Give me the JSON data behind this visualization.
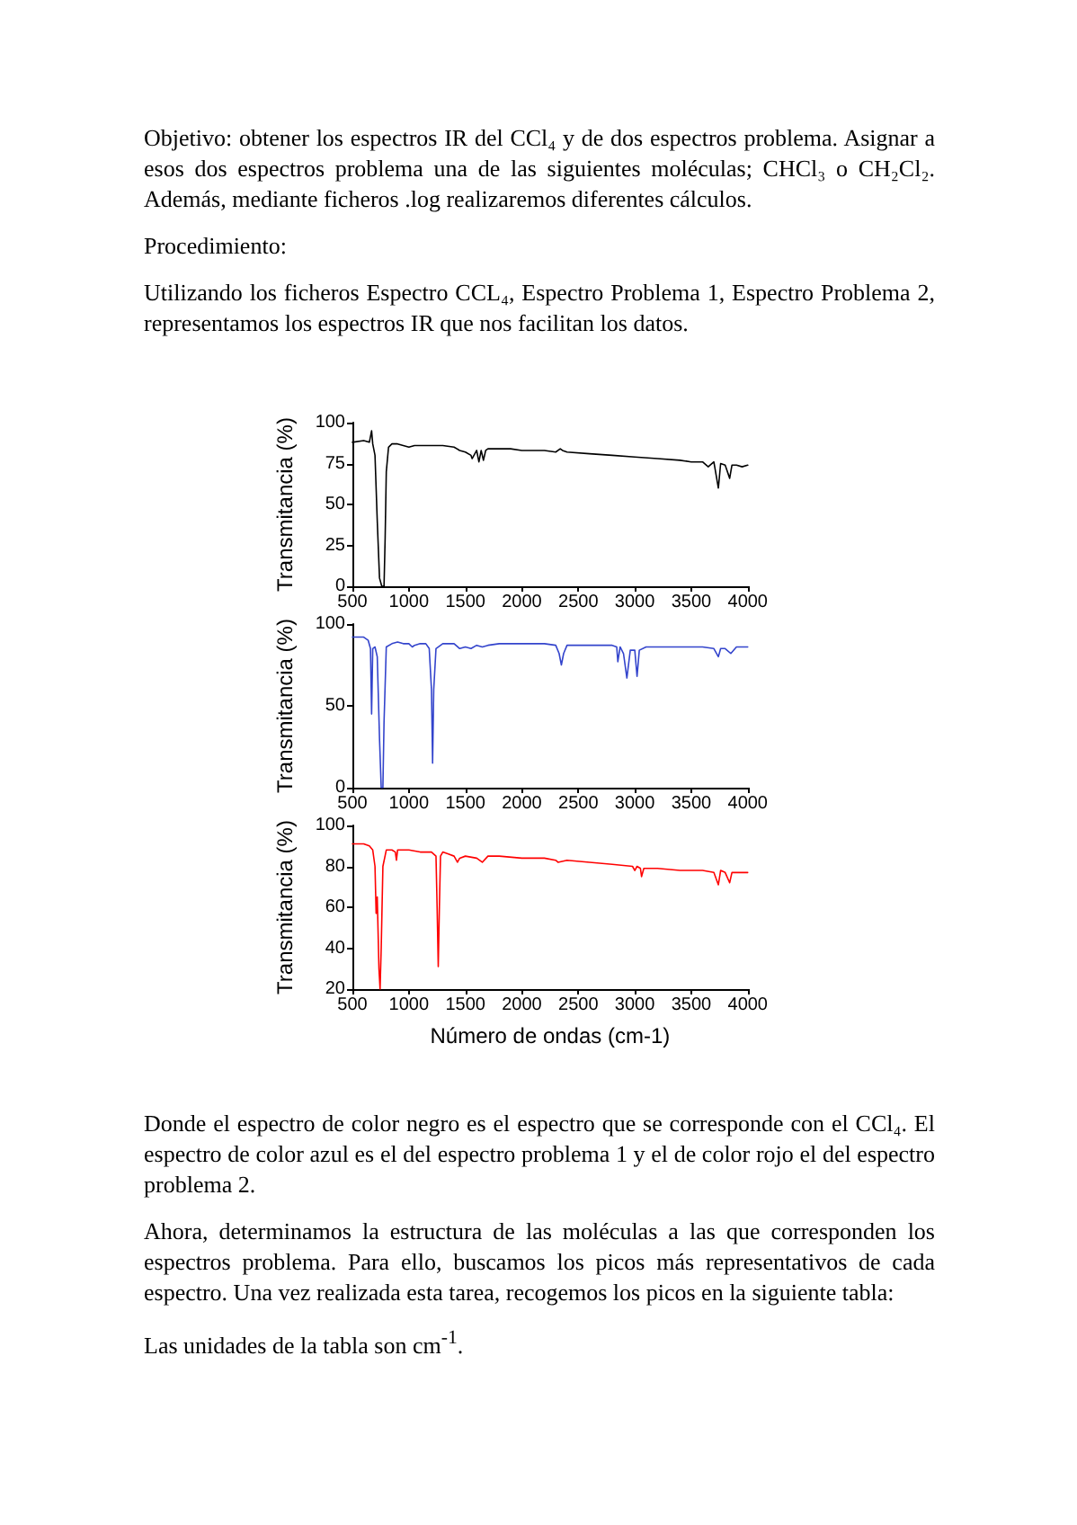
{
  "chart_data": [
    {
      "type": "line",
      "ylabel": "Transmitancia (%)",
      "xlim": [
        500,
        4000
      ],
      "xticks": [
        500,
        1000,
        1500,
        2000,
        2500,
        3000,
        3500,
        4000
      ],
      "ylim": [
        0,
        100
      ],
      "yticks": [
        0,
        25,
        50,
        75,
        100
      ],
      "grid": false,
      "marker": "none",
      "line_style": "solid",
      "annotations": [
        "Objetivo: obtener los espectros IR del CCl₄ y de dos espectros problema. Asignar a esos dos espectros problema una de las siguientes moléculas; CHCl₃ o CH₂Cl₂. Además, mediante ficheros .log realizaremos diferentes cálculos.",
        "Procedimiento:",
        "Utilizando los ficheros Espectro CCL₄, Espectro Problema 1, Espectro Problema 2, representamos los espectros IR que nos facilitan los datos."
      ],
      "series": [
        {
          "color": "#000000",
          "x": [
            500,
            600,
            650,
            670,
            680,
            700,
            720,
            740,
            760,
            780,
            790,
            800,
            820,
            850,
            900,
            950,
            1000,
            1050,
            1100,
            1200,
            1300,
            1400,
            1450,
            1500,
            1550,
            1560,
            1600,
            1620,
            1640,
            1660,
            1680,
            1700,
            1800,
            1900,
            2000,
            2100,
            2200,
            2300,
            2340,
            2360,
            2400,
            2600,
            2800,
            3000,
            3200,
            3400,
            3500,
            3600,
            3650,
            3700,
            3740,
            3760,
            3800,
            3840,
            3860,
            3900,
            3950,
            4000
          ],
          "values": [
            88,
            89,
            88,
            95,
            87,
            80,
            40,
            5,
            0,
            0,
            30,
            70,
            85,
            87,
            87,
            86,
            85,
            86,
            86,
            86,
            86,
            85,
            83,
            82,
            80,
            78,
            83,
            76,
            83,
            77,
            83,
            84,
            84,
            84,
            83,
            83,
            83,
            82,
            84,
            83,
            82,
            81,
            80,
            79,
            78,
            77,
            76,
            76,
            73,
            76,
            60,
            75,
            74,
            66,
            74,
            74,
            73,
            74
          ]
        }
      ]
    },
    {
      "type": "line",
      "ylabel": "Transmitancia (%)",
      "xlim": [
        500,
        4000
      ],
      "xticks": [
        500,
        1000,
        1500,
        2000,
        2500,
        3000,
        3500,
        4000
      ],
      "ylim": [
        0,
        100
      ],
      "yticks": [
        0,
        50,
        100
      ],
      "grid": false,
      "marker": "none",
      "line_style": "solid",
      "series": [
        {
          "color": "#3344cc",
          "x": [
            500,
            600,
            640,
            660,
            670,
            680,
            700,
            720,
            740,
            755,
            770,
            780,
            800,
            850,
            900,
            950,
            1000,
            1030,
            1050,
            1100,
            1150,
            1180,
            1200,
            1210,
            1220,
            1240,
            1300,
            1400,
            1450,
            1500,
            1550,
            1600,
            1650,
            1700,
            1800,
            2000,
            2200,
            2300,
            2330,
            2350,
            2370,
            2400,
            2600,
            2800,
            2840,
            2850,
            2870,
            2900,
            2930,
            2960,
            3000,
            3020,
            3040,
            3100,
            3500,
            3600,
            3700,
            3740,
            3760,
            3800,
            3850,
            3900,
            4000
          ],
          "values": [
            92,
            92,
            90,
            85,
            45,
            85,
            86,
            80,
            30,
            0,
            0,
            40,
            86,
            88,
            89,
            88,
            88,
            86,
            87,
            88,
            88,
            85,
            60,
            15,
            60,
            85,
            88,
            88,
            85,
            86,
            85,
            87,
            86,
            87,
            88,
            88,
            88,
            87,
            82,
            75,
            82,
            87,
            87,
            87,
            86,
            77,
            86,
            82,
            67,
            84,
            84,
            68,
            84,
            86,
            86,
            86,
            85,
            80,
            85,
            85,
            82,
            86,
            86
          ]
        }
      ]
    },
    {
      "type": "line",
      "xlabel": "Número de ondas (cm-1)",
      "ylabel": "Transmitancia (%)",
      "xlim": [
        500,
        4000
      ],
      "xticks": [
        500,
        1000,
        1500,
        2000,
        2500,
        3000,
        3500,
        4000
      ],
      "ylim": [
        20,
        100
      ],
      "yticks": [
        20,
        40,
        60,
        80,
        100
      ],
      "grid": false,
      "marker": "none",
      "line_style": "solid",
      "annotations": [
        "Donde el espectro de color negro es el espectro que se corresponde con el CCl₄. El espectro de color azul es el del espectro problema 1 y el de color rojo el del espectro problema 2.",
        "Ahora, determinamos la estructura de las moléculas a las que corresponden los espectros problema. Para ello, buscamos los picos más representativos de cada espectro. Una vez realizada esta tarea, recogemos los picos en la siguiente tabla:",
        "Las unidades de la tabla son cm$^{-1}$."
      ],
      "series": [
        {
          "color": "#ff0000",
          "x": [
            500,
            600,
            650,
            680,
            700,
            710,
            720,
            735,
            745,
            755,
            770,
            800,
            850,
            880,
            890,
            900,
            1000,
            1100,
            1200,
            1240,
            1250,
            1260,
            1270,
            1280,
            1300,
            1350,
            1400,
            1430,
            1450,
            1500,
            1600,
            1650,
            1700,
            1800,
            2000,
            2200,
            2300,
            2320,
            2400,
            2600,
            2800,
            2980,
            3000,
            3020,
            3050,
            3060,
            3080,
            3200,
            3400,
            3600,
            3700,
            3740,
            3760,
            3800,
            3840,
            3860,
            4000
          ],
          "values": [
            91,
            91,
            90,
            88,
            80,
            57,
            65,
            30,
            20,
            40,
            80,
            88,
            88,
            87,
            83,
            88,
            88,
            87,
            87,
            85,
            60,
            31,
            60,
            85,
            87,
            86,
            85,
            82,
            84,
            85,
            84,
            82,
            85,
            85,
            84,
            84,
            83,
            82,
            83,
            82,
            81,
            80,
            78,
            80,
            79,
            75,
            79,
            79,
            78,
            78,
            77,
            71,
            78,
            77,
            72,
            77,
            77
          ]
        }
      ]
    }
  ]
}
